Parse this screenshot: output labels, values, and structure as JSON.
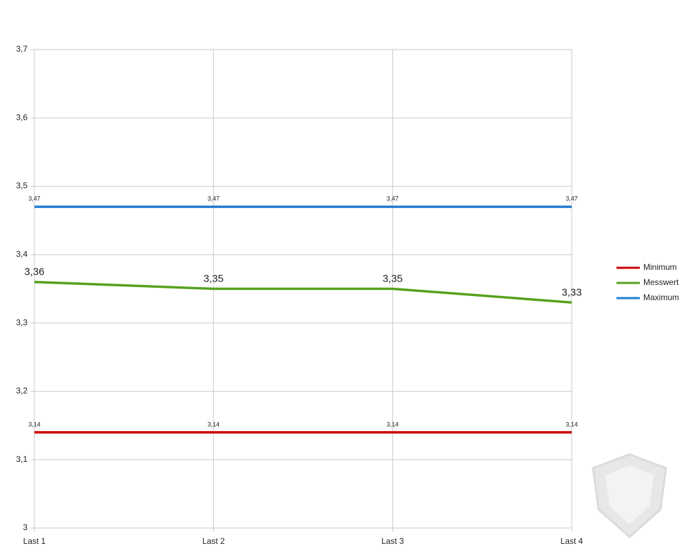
{
  "chart_data": {
    "type": "line",
    "categories": [
      "Last 1",
      "Last 2",
      "Last 3",
      "Last 4"
    ],
    "series": [
      {
        "name": "Minimum",
        "color": "#cc0000",
        "values": [
          3.14,
          3.14,
          3.14,
          3.14
        ],
        "value_labels": [
          "3,14",
          "3,14",
          "3,14",
          "3,14"
        ]
      },
      {
        "name": "Messwert",
        "color": "#57a11e",
        "values": [
          3.36,
          3.35,
          3.35,
          3.33
        ],
        "value_labels": [
          "3,36",
          "3,35",
          "3,35",
          "3,33"
        ]
      },
      {
        "name": "Maximum",
        "color": "#1f7ed0",
        "values": [
          3.47,
          3.47,
          3.47,
          3.47
        ],
        "value_labels": [
          "3,47",
          "3,47",
          "3,47",
          "3,47"
        ]
      }
    ],
    "ylim": [
      3,
      3.7
    ],
    "yticks": [
      3,
      {
        "value": 3.1,
        "label": "3,1"
      },
      {
        "value": 3.2,
        "label": "3,2"
      },
      {
        "value": 3.3,
        "label": "3,3"
      },
      {
        "value": 3.4,
        "label": "3,4"
      },
      {
        "value": 3.5,
        "label": "3,5"
      },
      {
        "value": 3.6,
        "label": "3,6"
      },
      {
        "value": 3.7,
        "label": "3,7"
      }
    ],
    "grid": true,
    "legend": "right"
  }
}
